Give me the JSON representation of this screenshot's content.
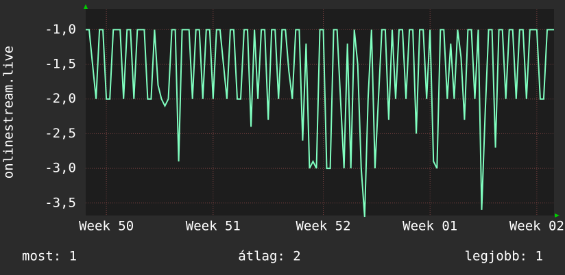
{
  "chart_data": {
    "type": "line",
    "y_label": "onlinestream.live",
    "ylim": [
      -3.68,
      -0.7
    ],
    "yticks": [
      {
        "value": -1,
        "label": "-1,0"
      },
      {
        "value": -1.5,
        "label": "-1,5"
      },
      {
        "value": -2,
        "label": "-2,0"
      },
      {
        "value": -2.5,
        "label": "-2,5"
      },
      {
        "value": -3,
        "label": "-3,0"
      },
      {
        "value": -3.5,
        "label": "-3,5"
      }
    ],
    "xlim": [
      0,
      136
    ],
    "xticks": [
      {
        "value": 6,
        "label": "Week 50"
      },
      {
        "value": 37,
        "label": "Week 51"
      },
      {
        "value": 69,
        "label": "Week 52"
      },
      {
        "value": 100,
        "label": "Week 01"
      },
      {
        "value": 131,
        "label": "Week 02"
      }
    ],
    "grid": true,
    "series": [
      {
        "color": "#80ffc0",
        "values": [
          -1,
          -1,
          -1.5,
          -2,
          -1,
          -1,
          -2,
          -2,
          -1,
          -1,
          -1,
          -2,
          -1,
          -1,
          -2,
          -1,
          -1,
          -1,
          -2,
          -2,
          -1,
          -1.8,
          -2,
          -2.1,
          -2,
          -1,
          -1,
          -2.9,
          -1,
          -1,
          -1,
          -2,
          -1,
          -1,
          -2,
          -1,
          -1,
          -2,
          -1,
          -1,
          -1.5,
          -2,
          -1,
          -1,
          -2,
          -2,
          -1,
          -1,
          -2.4,
          -1,
          -2,
          -1,
          -1,
          -2.3,
          -1,
          -1,
          -2,
          -1,
          -1,
          -1.6,
          -2,
          -1,
          -1,
          -2.6,
          -1.2,
          -3,
          -2.9,
          -3,
          -1,
          -1,
          -3,
          -3,
          -1,
          -1,
          -2,
          -3,
          -1.2,
          -3,
          -1,
          -1.5,
          -3,
          -3.7,
          -2,
          -1,
          -3,
          -2,
          -1,
          -1,
          -2.3,
          -1,
          -2,
          -1,
          -1,
          -2,
          -1,
          -1,
          -2.5,
          -1,
          -1,
          -2,
          -1,
          -2.9,
          -3,
          -1,
          -1,
          -2,
          -1.2,
          -2,
          -1,
          -1.4,
          -2.3,
          -1,
          -1,
          -2,
          -1,
          -3.6,
          -2.2,
          -1,
          -1,
          -2.7,
          -1,
          -1,
          -2,
          -1,
          -1,
          -2,
          -1,
          -1,
          -2,
          -1,
          -1,
          -1,
          -2,
          -2,
          -1,
          -1,
          -1
        ]
      }
    ]
  },
  "stats": {
    "current": "most: 1",
    "average": "átlag: 2",
    "best": "legjobb: 1"
  }
}
